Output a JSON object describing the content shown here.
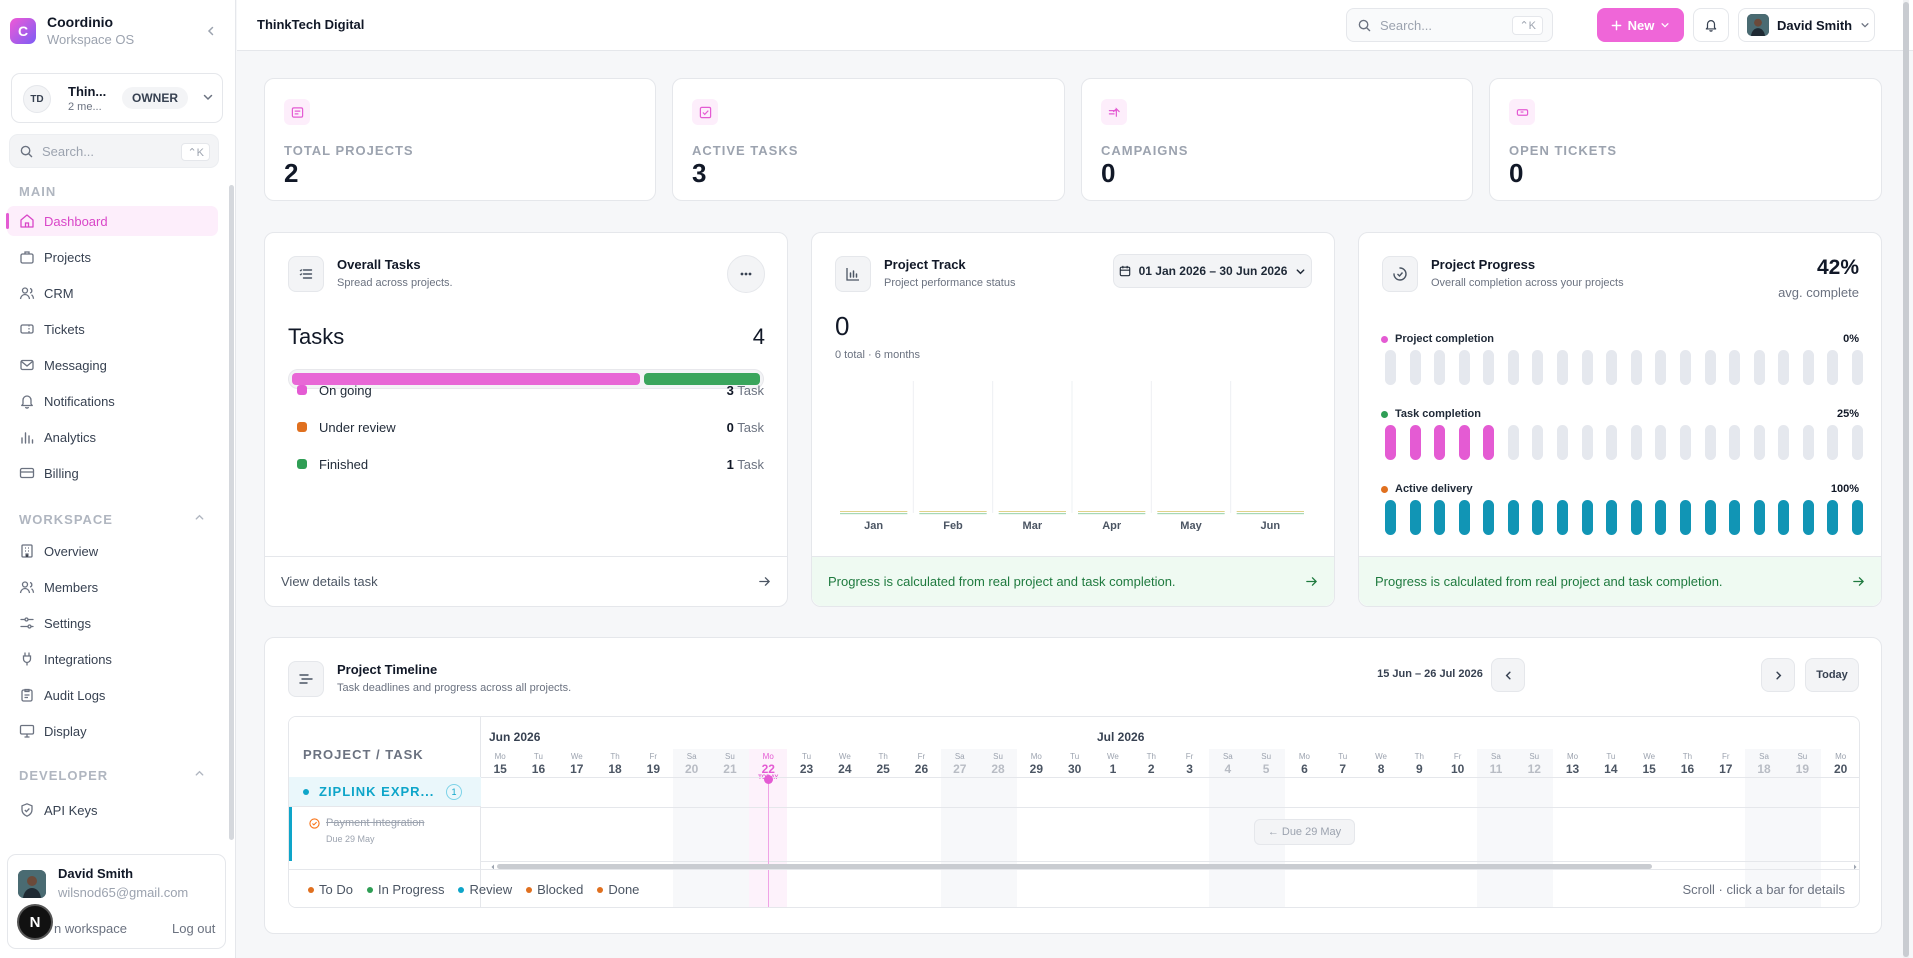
{
  "brand": {
    "logo_letter": "C",
    "name": "Coordinio",
    "subtitle": "Workspace OS"
  },
  "workspace": {
    "initials": "TD",
    "name": "Thin...",
    "members": "2 me...",
    "role": "OWNER"
  },
  "sidebar": {
    "search_placeholder": "Search...",
    "search_shortcut": "⌃K",
    "main_label": "MAIN",
    "main_items": [
      {
        "label": "Dashboard",
        "icon": "home-icon",
        "active": true
      },
      {
        "label": "Projects",
        "icon": "briefcase-icon"
      },
      {
        "label": "CRM",
        "icon": "users-icon"
      },
      {
        "label": "Tickets",
        "icon": "ticket-icon"
      },
      {
        "label": "Messaging",
        "icon": "mail-icon"
      },
      {
        "label": "Notifications",
        "icon": "bell-icon"
      },
      {
        "label": "Analytics",
        "icon": "bar-chart-icon"
      },
      {
        "label": "Billing",
        "icon": "credit-card-icon"
      }
    ],
    "workspace_label": "WORKSPACE",
    "workspace_items": [
      {
        "label": "Overview",
        "icon": "building-icon"
      },
      {
        "label": "Members",
        "icon": "users-icon"
      },
      {
        "label": "Settings",
        "icon": "sliders-icon"
      },
      {
        "label": "Integrations",
        "icon": "plug-icon"
      },
      {
        "label": "Audit Logs",
        "icon": "clipboard-icon"
      },
      {
        "label": "Display",
        "icon": "monitor-icon"
      }
    ],
    "developer_label": "DEVELOPER",
    "developer_items": [
      {
        "label": "API Keys",
        "icon": "shield-check-icon"
      }
    ]
  },
  "user_card": {
    "name": "David Smith",
    "email": "wilsnod65@gmail.com",
    "workspace_link": "n workspace",
    "logout": "Log out",
    "badge": "N"
  },
  "topbar": {
    "title": "ThinkTech Digital",
    "search_placeholder": "Search...",
    "search_shortcut": "⌃K",
    "new_label": "New",
    "user_name": "David Smith"
  },
  "stats": [
    {
      "label": "TOTAL PROJECTS",
      "value": "2",
      "icon": "document-icon"
    },
    {
      "label": "ACTIVE TASKS",
      "value": "3",
      "icon": "check-square-icon"
    },
    {
      "label": "CAMPAIGNS",
      "value": "0",
      "icon": "megaphone-icon"
    },
    {
      "label": "OPEN TICKETS",
      "value": "0",
      "icon": "ticket-icon"
    }
  ],
  "overall_tasks": {
    "title": "Overall Tasks",
    "subtitle": "Spread across projects.",
    "heading": "Tasks",
    "total": "4",
    "rows": [
      {
        "label": "On going",
        "count": "3",
        "unit": "Task",
        "color": "#e45bd3"
      },
      {
        "label": "Under review",
        "count": "0",
        "unit": "Task",
        "color": "#e0701f"
      },
      {
        "label": "Finished",
        "count": "1",
        "unit": "Task",
        "color": "#2f9e55"
      }
    ],
    "bar_fractions": [
      0.75,
      0.25
    ],
    "footer": "View details task"
  },
  "project_track": {
    "title": "Project Track",
    "subtitle": "Project performance status",
    "date_range": "01 Jan 2026 – 30 Jun 2026",
    "total": "0",
    "total_sub": "0 total · 6 months",
    "footer": "Progress is calculated from real project and task completion."
  },
  "chart_data": {
    "type": "bar",
    "categories": [
      "Jan",
      "Feb",
      "Mar",
      "Apr",
      "May",
      "Jun"
    ],
    "values": [
      0,
      0,
      0,
      0,
      0,
      0
    ],
    "title": "",
    "xlabel": "",
    "ylabel": "",
    "grid": false
  },
  "project_progress": {
    "title": "Project Progress",
    "subtitle": "Overall completion across your projects",
    "avg": "42%",
    "avg_label": "avg. complete",
    "rows": [
      {
        "label": "Project completion",
        "pct": "0%",
        "value": 0,
        "color": "#e45bd3",
        "fill": "#e45bd3"
      },
      {
        "label": "Task completion",
        "pct": "25%",
        "value": 0.25,
        "color": "#2f9e55",
        "fill": "#e45bd3"
      },
      {
        "label": "Active delivery",
        "pct": "100%",
        "value": 1,
        "color": "#e0701f",
        "fill": "#1195b5"
      }
    ],
    "footer": "Progress is calculated from real project and task completion."
  },
  "timeline": {
    "title": "Project Timeline",
    "subtitle": "Task deadlines and progress across all projects.",
    "range": "15 Jun – 26 Jul 2026",
    "today_label": "Today",
    "column_header": "PROJECT / TASK",
    "months": [
      "Jun 2026",
      "Jul 2026"
    ],
    "days": [
      {
        "dow": "Mo",
        "d": "15"
      },
      {
        "dow": "Tu",
        "d": "16"
      },
      {
        "dow": "We",
        "d": "17"
      },
      {
        "dow": "Th",
        "d": "18"
      },
      {
        "dow": "Fr",
        "d": "19"
      },
      {
        "dow": "Sa",
        "d": "20"
      },
      {
        "dow": "Su",
        "d": "21"
      },
      {
        "dow": "Mo",
        "d": "22",
        "today": true
      },
      {
        "dow": "Tu",
        "d": "23"
      },
      {
        "dow": "We",
        "d": "24"
      },
      {
        "dow": "Th",
        "d": "25"
      },
      {
        "dow": "Fr",
        "d": "26"
      },
      {
        "dow": "Sa",
        "d": "27"
      },
      {
        "dow": "Su",
        "d": "28"
      },
      {
        "dow": "Mo",
        "d": "29"
      },
      {
        "dow": "Tu",
        "d": "30"
      },
      {
        "dow": "We",
        "d": "1"
      },
      {
        "dow": "Th",
        "d": "2"
      },
      {
        "dow": "Fr",
        "d": "3"
      },
      {
        "dow": "Sa",
        "d": "4"
      },
      {
        "dow": "Su",
        "d": "5"
      },
      {
        "dow": "Mo",
        "d": "6"
      },
      {
        "dow": "Tu",
        "d": "7"
      },
      {
        "dow": "We",
        "d": "8"
      },
      {
        "dow": "Th",
        "d": "9"
      },
      {
        "dow": "Fr",
        "d": "10"
      },
      {
        "dow": "Sa",
        "d": "11"
      },
      {
        "dow": "Su",
        "d": "12"
      },
      {
        "dow": "Mo",
        "d": "13"
      },
      {
        "dow": "Tu",
        "d": "14"
      },
      {
        "dow": "We",
        "d": "15"
      },
      {
        "dow": "Th",
        "d": "16"
      },
      {
        "dow": "Fr",
        "d": "17"
      },
      {
        "dow": "Sa",
        "d": "18"
      },
      {
        "dow": "Su",
        "d": "19"
      },
      {
        "dow": "Mo",
        "d": "20"
      }
    ],
    "today_tag": "TODAY",
    "project": {
      "name": "ZIPLINK EXPR...",
      "count": "1"
    },
    "task": {
      "name": "Payment Integration",
      "due": "Due 29 May"
    },
    "due_chip": "← Due 29 May",
    "statuses": [
      {
        "label": "To Do",
        "color": "#e0701f"
      },
      {
        "label": "In Progress",
        "color": "#2f9e55"
      },
      {
        "label": "Review",
        "color": "#0ea5c9"
      },
      {
        "label": "Blocked",
        "color": "#e0701f"
      },
      {
        "label": "Done",
        "color": "#e0701f"
      }
    ],
    "hint": "Scroll · click a bar for details"
  }
}
